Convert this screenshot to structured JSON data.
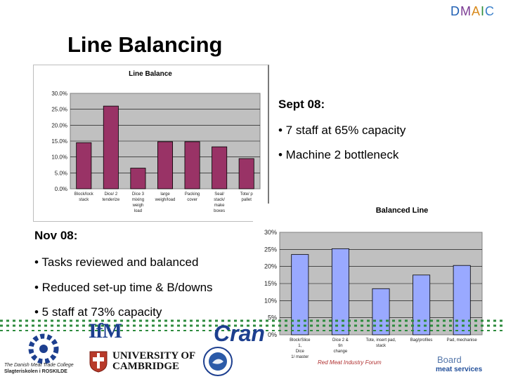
{
  "header": {
    "dmaic_letters": [
      "D",
      "M",
      "A",
      "I",
      "C"
    ],
    "dmaic_colors": [
      "#1f5fb3",
      "#7b3a93",
      "#d98a1c",
      "#2f8f3a",
      "#3a7fc9"
    ]
  },
  "title": "Line Balancing",
  "sept": {
    "heading": "Sept 08:",
    "bullets": [
      "• 7 staff at 65% capacity",
      "• Machine 2 bottleneck"
    ]
  },
  "nov": {
    "heading": "Nov 08:",
    "bullets": [
      "• Tasks reviewed and balanced",
      "• Reduced set-up time & B/downs",
      "• 5 staff at 73% capacity"
    ]
  },
  "chart_data": [
    {
      "type": "bar",
      "title": "Line Balance",
      "y_ticks": [
        "30.0%",
        "25.0%",
        "20.0%",
        "15.0%",
        "10.0%",
        "5.0%",
        "0.0%"
      ],
      "ylim": [
        0,
        30
      ],
      "grid": true,
      "bar_color": "#993366",
      "categories": [
        [
          "Block/lock",
          "stack"
        ],
        [
          "Dice/ 2",
          "tenderize"
        ],
        [
          "Dice 3",
          "mixing",
          "weigh",
          "load"
        ],
        [
          "large",
          "weigh/load"
        ],
        [
          "Packing",
          "cover"
        ],
        [
          "Seal/",
          "stack/",
          "make",
          "boxes"
        ],
        [
          "Tote/ p",
          "pallet"
        ]
      ],
      "values": [
        14.5,
        26,
        6.5,
        14.8,
        14.8,
        13.2,
        9.5
      ]
    },
    {
      "type": "bar",
      "title": "Balanced Line",
      "y_ticks": [
        "30%",
        "25%",
        "20%",
        "15%",
        "10%",
        "5%",
        "0%"
      ],
      "ylim": [
        0,
        30
      ],
      "grid": true,
      "bar_color": "#99a9ff",
      "categories": [
        [
          "Block/Slice",
          "1,",
          "Dice",
          "1/ master"
        ],
        [
          "Dice 2 &",
          "tin",
          "change"
        ],
        [
          "Tote, insert pad,",
          "stack"
        ],
        [
          "Bag/profiles"
        ],
        [
          "Pad, mechanise"
        ]
      ],
      "values": [
        23.5,
        25.2,
        13.5,
        17.5,
        20.3
      ]
    }
  ],
  "logos": {
    "ifm": "IfM",
    "cambridge_line1": "UNIVERSITY OF",
    "cambridge_line2": "CAMBRIDGE",
    "cran": "Cran",
    "danish_line1": "The Danish Meat Trade College",
    "danish_line2": "Slagteriskolen i ROSKILDE",
    "rmif": "Red Meat Industry Forum",
    "board": "Board",
    "meat_services": "meat services"
  }
}
